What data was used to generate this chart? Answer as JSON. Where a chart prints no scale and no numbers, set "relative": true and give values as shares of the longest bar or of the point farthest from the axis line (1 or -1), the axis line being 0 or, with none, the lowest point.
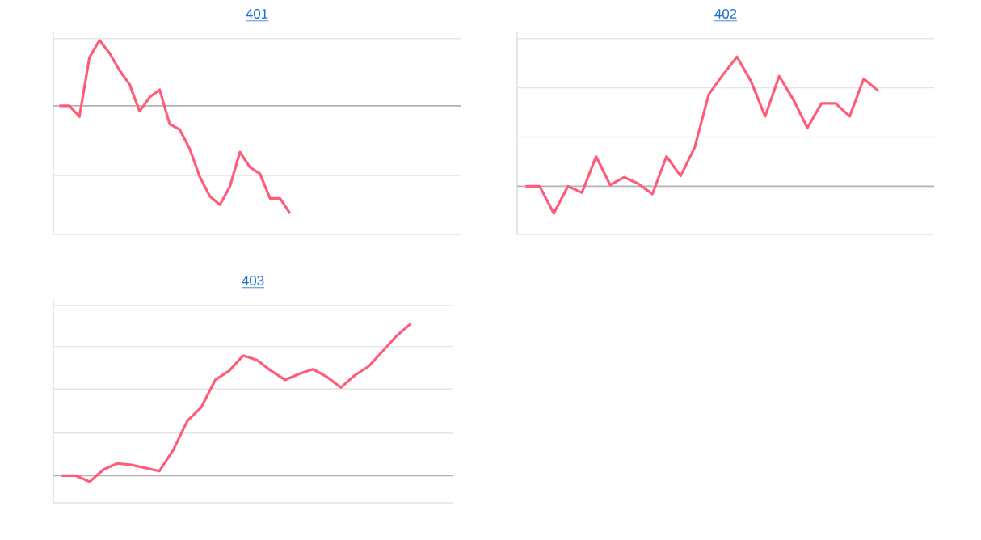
{
  "chart_data": [
    {
      "type": "line",
      "title": "401",
      "relative": true,
      "ref_lines": [
        {
          "axis": "y",
          "value": 0.625,
          "color": "#e5e5e5"
        },
        {
          "axis": "y",
          "value": -0.646,
          "color": "#e5e5e5"
        }
      ],
      "categories": [
        null,
        null,
        null,
        null,
        null,
        null,
        null,
        null,
        null,
        null,
        null,
        null,
        null,
        null,
        null,
        null,
        null,
        null,
        null,
        null,
        null,
        null,
        null,
        null,
        null,
        null,
        null,
        null,
        null,
        null,
        null,
        null,
        null,
        null,
        null,
        null,
        null,
        null,
        null,
        null,
        null
      ],
      "series": [
        {
          "color": "#ff5c7a",
          "values": [
            0,
            0,
            -0.1,
            0.45,
            0.61,
            0.49,
            0.33,
            0.2,
            -0.05,
            0.08,
            0.15,
            -0.17,
            -0.22,
            -0.4,
            -0.66,
            -0.84,
            -0.92,
            -0.75,
            -0.43,
            -0.57,
            -0.63,
            -0.86,
            -0.86,
            -1,
            null,
            null,
            null,
            null,
            null,
            null,
            null,
            null,
            null,
            null,
            null,
            null,
            null,
            null,
            null,
            null,
            null
          ]
        }
      ]
    },
    {
      "type": "line",
      "title": "402",
      "relative": true,
      "ref_lines": [
        {
          "axis": "y",
          "value": 1.14,
          "color": "#e5e5e5"
        },
        {
          "axis": "y",
          "value": 0.76,
          "color": "#e5e5e5"
        },
        {
          "axis": "y",
          "value": 0.38,
          "color": "#e5e5e5"
        }
      ],
      "categories": [
        null,
        null,
        null,
        null,
        null,
        null,
        null,
        null,
        null,
        null,
        null,
        null,
        null,
        null,
        null,
        null,
        null,
        null,
        null,
        null,
        null,
        null,
        null,
        null,
        null,
        null,
        null,
        null,
        null,
        null
      ],
      "series": [
        {
          "color": "#ff5c7a",
          "values": [
            0,
            0,
            -0.21,
            0,
            -0.05,
            0.23,
            0.01,
            0.07,
            0.02,
            -0.06,
            0.23,
            0.08,
            0.3,
            0.71,
            0.86,
            1,
            0.81,
            0.54,
            0.85,
            0.67,
            0.45,
            0.64,
            0.64,
            0.54,
            0.83,
            0.74,
            null,
            null,
            null,
            null
          ]
        }
      ]
    },
    {
      "type": "line",
      "title": "403",
      "relative": true,
      "ref_lines": [
        {
          "axis": "y",
          "value": 1.12,
          "color": "#e5e5e5"
        },
        {
          "axis": "y",
          "value": 0.85,
          "color": "#e5e5e5"
        },
        {
          "axis": "y",
          "value": 0.57,
          "color": "#e5e5e5"
        },
        {
          "axis": "y",
          "value": 0.28,
          "color": "#e5e5e5"
        }
      ],
      "categories": [
        null,
        null,
        null,
        null,
        null,
        null,
        null,
        null,
        null,
        null,
        null,
        null,
        null,
        null,
        null,
        null,
        null,
        null,
        null,
        null,
        null,
        null,
        null,
        null,
        null,
        null,
        null,
        null,
        null
      ],
      "series": [
        {
          "color": "#ff5c7a",
          "values": [
            0,
            0,
            -0.04,
            0.04,
            0.08,
            0.07,
            0.05,
            0.03,
            0.17,
            0.36,
            0.45,
            0.63,
            0.69,
            0.79,
            0.76,
            0.69,
            0.63,
            0.67,
            0.7,
            0.65,
            0.58,
            0.66,
            0.72,
            0.82,
            0.92,
            1,
            null,
            null,
            null
          ]
        }
      ]
    }
  ]
}
